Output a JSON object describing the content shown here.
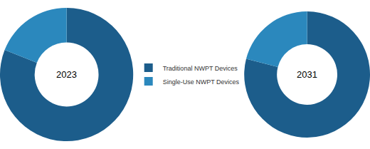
{
  "chart_data": [
    {
      "type": "donut",
      "title": "2023",
      "categories": [
        "Traditional NWPT Devices",
        "Single-Use NWPT Devices"
      ],
      "values": [
        81,
        19
      ],
      "colors": [
        "#1c5d8b",
        "#2b88bd"
      ],
      "legend": "center"
    },
    {
      "type": "donut",
      "title": "2031",
      "categories": [
        "Traditional NWPT Devices",
        "Single-Use NWPT Devices"
      ],
      "values": [
        79,
        21
      ],
      "colors": [
        "#1c5d8b",
        "#2b88bd"
      ],
      "legend": "center"
    }
  ]
}
